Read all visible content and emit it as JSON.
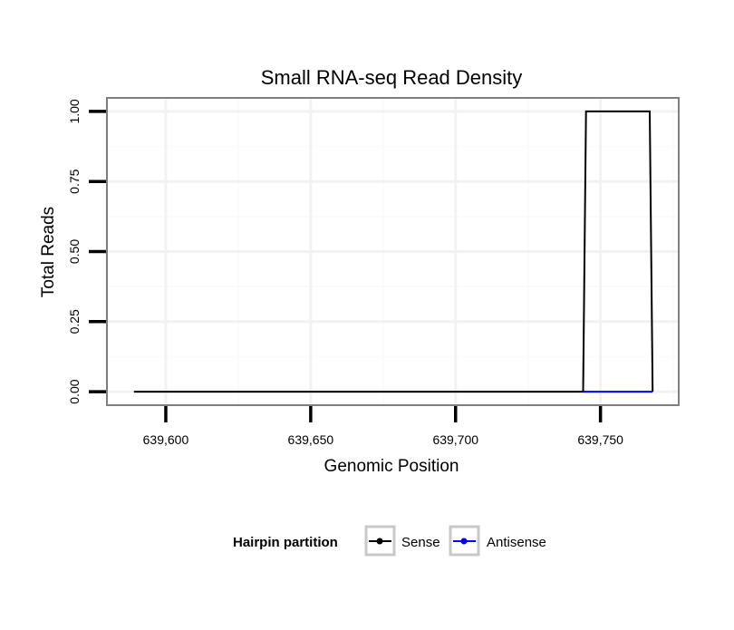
{
  "chart_data": {
    "type": "line",
    "title": "Small RNA-seq Read Density",
    "xlabel": "Genomic Position",
    "ylabel": "Total Reads",
    "xlim": [
      639580,
      639777
    ],
    "ylim": [
      -0.045,
      1.045
    ],
    "x_ticks": [
      639600,
      639650,
      639700,
      639750
    ],
    "x_tick_labels": [
      "639,600",
      "639,650",
      "639,700",
      "639,750"
    ],
    "y_ticks": [
      0,
      0.25,
      0.5,
      0.75,
      1.0
    ],
    "y_tick_labels": [
      "0.00",
      "0.25",
      "0.50",
      "0.75",
      "1.00"
    ],
    "grid": true,
    "legend": {
      "title": "Hairpin partition",
      "position": "bottom",
      "entries": [
        "Sense",
        "Antisense"
      ]
    },
    "series": [
      {
        "name": "Sense",
        "color": "#000000",
        "x": [
          639589,
          639744,
          639745,
          639767,
          639768
        ],
        "y": [
          0,
          0,
          1,
          1,
          0
        ]
      },
      {
        "name": "Antisense",
        "color": "#0000ff",
        "x": [
          639744,
          639768
        ],
        "y": [
          0,
          0
        ]
      }
    ]
  }
}
